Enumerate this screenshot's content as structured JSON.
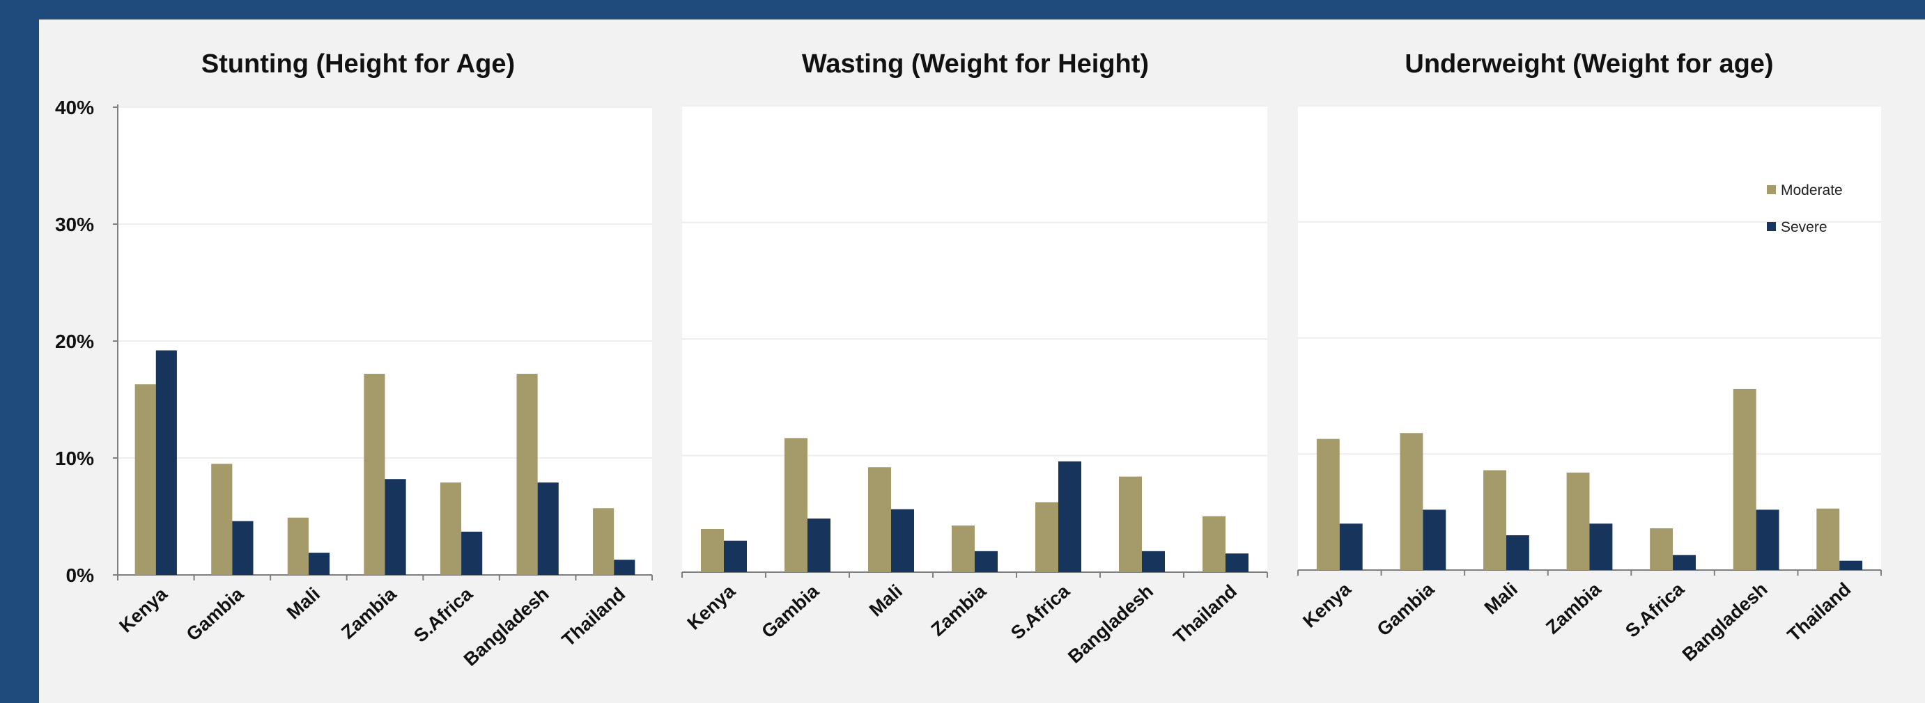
{
  "colors": {
    "moderate": "#a59a69",
    "severe": "#16345c"
  },
  "chart_data": [
    {
      "type": "bar",
      "title": "Stunting (Height for Age)",
      "categories": [
        "Kenya",
        "Gambia",
        "Mali",
        "Zambia",
        "S.Africa",
        "Bangladesh",
        "Thailand"
      ],
      "ylim": [
        0,
        40
      ],
      "y_ticks": [
        "0%",
        "10%",
        "20%",
        "30%",
        "40%"
      ],
      "series": [
        {
          "name": "Moderate",
          "values": [
            16.3,
            9.5,
            4.9,
            17.2,
            7.9,
            17.2,
            5.7
          ]
        },
        {
          "name": "Severe",
          "values": [
            19.2,
            4.6,
            1.9,
            8.2,
            3.7,
            7.9,
            1.3
          ]
        }
      ],
      "grid": true
    },
    {
      "type": "bar",
      "title": "Wasting (Weight for Height)",
      "categories": [
        "Kenya",
        "Gambia",
        "Mali",
        "Zambia",
        "S.Africa",
        "Bangladesh",
        "Thailand"
      ],
      "ylim": [
        0,
        40
      ],
      "series": [
        {
          "name": "Moderate",
          "values": [
            3.7,
            11.5,
            9.0,
            4.0,
            6.0,
            8.2,
            4.8
          ]
        },
        {
          "name": "Severe",
          "values": [
            2.7,
            4.6,
            5.4,
            1.8,
            9.5,
            1.8,
            1.6
          ]
        }
      ],
      "grid": true
    },
    {
      "type": "bar",
      "title": "Underweight (Weight for age)",
      "categories": [
        "Kenya",
        "Gambia",
        "Mali",
        "Zambia",
        "S.Africa",
        "Bangladesh",
        "Thailand"
      ],
      "ylim": [
        0,
        40
      ],
      "series": [
        {
          "name": "Moderate",
          "values": [
            11.3,
            11.8,
            8.6,
            8.4,
            3.6,
            15.6,
            5.3
          ]
        },
        {
          "name": "Severe",
          "values": [
            4.0,
            5.2,
            3.0,
            4.0,
            1.3,
            5.2,
            0.8
          ]
        }
      ],
      "legend": {
        "placement": "top-right",
        "items": [
          "Moderate",
          "Severe"
        ]
      },
      "grid": true
    }
  ]
}
